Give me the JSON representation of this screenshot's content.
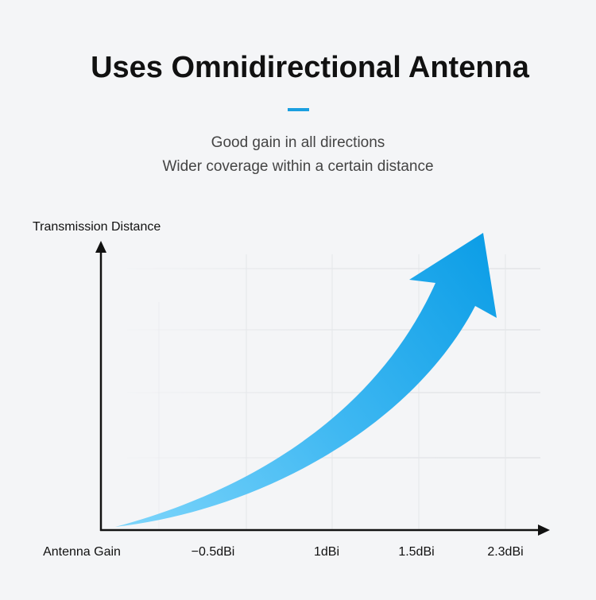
{
  "header": {
    "title": "Uses Omnidirectional Antenna",
    "subtitle": [
      "Good gain in all directions",
      "Wider coverage within a certain distance"
    ]
  },
  "diagram": {
    "y_axis_label": "Transmission Distance",
    "x_axis_label": "Antenna Gain",
    "x_labels": [
      "−0.5dBi",
      "1dBi",
      "1.5dBi",
      "2.3dBi"
    ]
  }
}
